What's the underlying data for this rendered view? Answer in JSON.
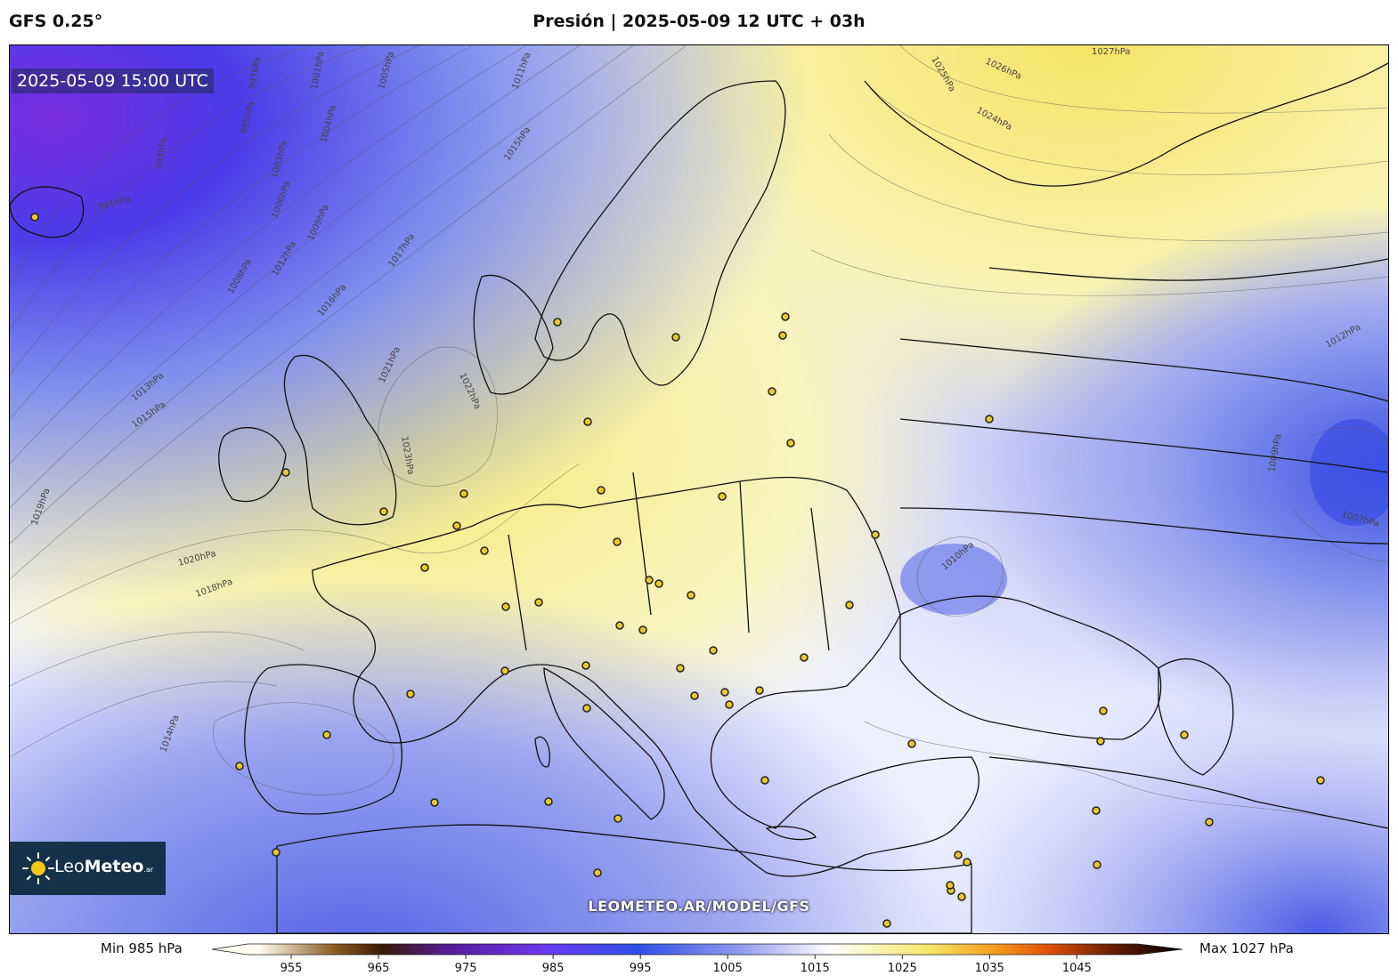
{
  "header": {
    "model": "GFS 0.25°",
    "title": "Presión | 2025-05-09 12 UTC + 03h"
  },
  "map": {
    "valid_time": "2025-05-09 15:00 UTC",
    "watermark": "LEOMETEO.AR/MODEL/GFS",
    "logo": {
      "brand_light": "Leo",
      "brand_bold": "Meteo",
      "suffix": ".ar",
      "icon": "sun-icon"
    },
    "isobar_labels": [
      "1027hPa",
      "1026hPa",
      "1025hPa",
      "1024hPa",
      "1023hPa",
      "1022hPa",
      "1021hPa",
      "1020hPa",
      "1019hPa",
      "1018hPa",
      "1017hPa",
      "1016hPa",
      "1015hPa",
      "1014hPa",
      "1013hPa",
      "1012hPa",
      "1011hPa",
      "1010hPa",
      "1009hPa",
      "1008hPa",
      "1007hPa",
      "1006hPa",
      "1005hPa",
      "1004hPa",
      "1003hPa",
      "1001hPa",
      "997hPa",
      "995hPa",
      "993hPa",
      "991hPa"
    ],
    "colors": {
      "low_deep": "#7a2de0",
      "low": "#3a49e6",
      "mid_low": "#8c97ee",
      "neutral": "#ffffff",
      "high": "#f7ef9a",
      "high_strong": "#f4e56a"
    }
  },
  "colorbar": {
    "min_label": "Min 985 hPa",
    "max_label": "Max 1027 hPa",
    "ticks": [
      "955",
      "965",
      "975",
      "985",
      "995",
      "1005",
      "1015",
      "1025",
      "1035",
      "1045"
    ],
    "stops": [
      {
        "value": 955,
        "color": "#fffdf0"
      },
      {
        "value": 963,
        "color": "#8a5a1e"
      },
      {
        "value": 968,
        "color": "#3a1a05"
      },
      {
        "value": 975,
        "color": "#5a1a9a"
      },
      {
        "value": 985,
        "color": "#6a3af0"
      },
      {
        "value": 995,
        "color": "#3050e8"
      },
      {
        "value": 1005,
        "color": "#8c97ee"
      },
      {
        "value": 1015,
        "color": "#ffffff"
      },
      {
        "value": 1025,
        "color": "#f5e86a"
      },
      {
        "value": 1032,
        "color": "#f5a020"
      },
      {
        "value": 1038,
        "color": "#e05008"
      },
      {
        "value": 1045,
        "color": "#601a02"
      },
      {
        "value": 1052,
        "color": "#000000"
      }
    ]
  }
}
